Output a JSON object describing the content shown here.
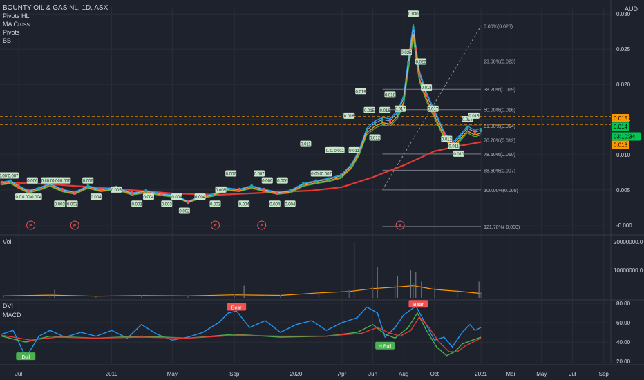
{
  "header": {
    "title": "BOUNTY OIL & GAS NL, 1D, ASX",
    "indicators": [
      "Pivots HL",
      "MA Cross",
      "Pivots",
      "BB"
    ]
  },
  "colors": {
    "background": "#1e222d",
    "grid": "#2a2e39",
    "axis_text": "#d1d4dc",
    "up": "#26a69a",
    "down": "#ef5350",
    "ma_red": "#e53935",
    "ma_orange": "#ff9800",
    "ma_blue": "#2196f3",
    "ma_green": "#4caf50",
    "dvi": "#2196f3",
    "macd": "#4caf50",
    "signal": "#e53935",
    "fib": "#787b86",
    "price_tag_green": "#00c853",
    "price_tag_orange": "#ff9800"
  },
  "price_pane": {
    "currency": "AUD",
    "yaxis_labels": [
      "0.030",
      "0.025",
      "0.020",
      "0.015",
      "0.010",
      "0.005",
      "-0.000"
    ],
    "ylim": [
      -0.001,
      0.031
    ],
    "price_tags": [
      {
        "label": "0.015",
        "value": 0.0152,
        "color": "orange"
      },
      {
        "label": "0.014",
        "value": 0.014,
        "color": "green"
      },
      {
        "label": "03:10:34",
        "value": 0.0126,
        "color": "green"
      },
      {
        "label": "0.013",
        "value": 0.0114,
        "color": "orange"
      }
    ],
    "hlines": [
      0.0154,
      0.0143
    ],
    "fib_levels": [
      {
        "label": "0.00%(0.028)",
        "value": 0.0283
      },
      {
        "label": "23.60%(0.023)",
        "value": 0.0233
      },
      {
        "label": "38.20%(0.019)",
        "value": 0.0193
      },
      {
        "label": "50.00%(0.016)",
        "value": 0.0164
      },
      {
        "label": "61.80%(0.014)",
        "value": 0.0141
      },
      {
        "label": "70.70%(0.012)",
        "value": 0.0121
      },
      {
        "label": "78.60%(0.010)",
        "value": 0.0101
      },
      {
        "label": "88.60%(0.007)",
        "value": 0.0078
      },
      {
        "label": "100.00%(0.005)",
        "value": 0.005
      },
      {
        "label": "121.70%(-0.000)",
        "value": -0.0002
      }
    ],
    "earnings_marker": "E",
    "earnings_dates": [
      "2018-07-25",
      "2018-10-20",
      "2019-07-25",
      "2019-10-25",
      "2020-07-25"
    ],
    "pivot_labels": [
      {
        "t": "2018-06-02",
        "v": "0.007",
        "y": 0.007
      },
      {
        "t": "2018-06-20",
        "v": "0.007",
        "y": 0.007
      },
      {
        "t": "2018-07-05",
        "v": "0.004",
        "y": 0.004
      },
      {
        "t": "2018-07-12",
        "v": "0.004",
        "y": 0.004
      },
      {
        "t": "2018-07-18",
        "v": "0.004",
        "y": 0.004
      },
      {
        "t": "2018-07-28",
        "v": "0.006",
        "y": 0.0063
      },
      {
        "t": "2018-08-05",
        "v": "0.004",
        "y": 0.004
      },
      {
        "t": "2018-08-25",
        "v": "0.006",
        "y": 0.0063
      },
      {
        "t": "2018-09-05",
        "v": "0.006",
        "y": 0.0063
      },
      {
        "t": "2018-09-15",
        "v": "0.006",
        "y": 0.0063
      },
      {
        "t": "2018-10-01",
        "v": "0.006",
        "y": 0.0063
      },
      {
        "t": "2018-09-20",
        "v": "0.003",
        "y": 0.003
      },
      {
        "t": "2018-10-15",
        "v": "0.003",
        "y": 0.003
      },
      {
        "t": "2018-11-15",
        "v": "0.006",
        "y": 0.0063
      },
      {
        "t": "2018-12-01",
        "v": "0.004",
        "y": 0.004
      },
      {
        "t": "2019-01-10",
        "v": "0.005",
        "y": 0.005
      },
      {
        "t": "2019-02-20",
        "v": "0.003",
        "y": 0.003
      },
      {
        "t": "2019-03-15",
        "v": "0.004",
        "y": 0.004
      },
      {
        "t": "2019-04-20",
        "v": "0.003",
        "y": 0.003
      },
      {
        "t": "2019-05-10",
        "v": "0.004",
        "y": 0.004
      },
      {
        "t": "2019-05-25",
        "v": "0.002",
        "y": 0.002
      },
      {
        "t": "2019-06-25",
        "v": "0.004",
        "y": 0.004
      },
      {
        "t": "2019-07-25",
        "v": "0.003",
        "y": 0.003
      },
      {
        "t": "2019-08-05",
        "v": "0.005",
        "y": 0.005
      },
      {
        "t": "2019-08-25",
        "v": "0.007",
        "y": 0.0073
      },
      {
        "t": "2019-09-20",
        "v": "0.004",
        "y": 0.003
      },
      {
        "t": "2019-10-20",
        "v": "0.007",
        "y": 0.0073
      },
      {
        "t": "2019-11-05",
        "v": "0.006",
        "y": 0.0063
      },
      {
        "t": "2019-11-20",
        "v": "0.004",
        "y": 0.003
      },
      {
        "t": "2019-12-05",
        "v": "0.006",
        "y": 0.0063
      },
      {
        "t": "2019-12-20",
        "v": "0.004",
        "y": 0.003
      },
      {
        "t": "2020-01-20",
        "v": "0.011",
        "y": 0.0115
      },
      {
        "t": "2020-02-10",
        "v": "0.007",
        "y": 0.0073
      },
      {
        "t": "2020-02-20",
        "v": "0.007",
        "y": 0.0073
      },
      {
        "t": "2020-03-01",
        "v": "0.007",
        "y": 0.0073
      },
      {
        "t": "2020-03-10",
        "v": "0.011",
        "y": 0.0106
      },
      {
        "t": "2020-03-18",
        "v": "0.011",
        "y": 0.0106
      },
      {
        "t": "2020-03-26",
        "v": "0.011",
        "y": 0.0106
      },
      {
        "t": "2020-04-15",
        "v": "0.016",
        "y": 0.0155
      },
      {
        "t": "2020-04-25",
        "v": "0.011",
        "y": 0.0106
      },
      {
        "t": "2020-05-08",
        "v": "0.019",
        "y": 0.019
      },
      {
        "t": "2020-05-25",
        "v": "0.015",
        "y": 0.0163
      },
      {
        "t": "2020-06-05",
        "v": "0.012",
        "y": 0.0124
      },
      {
        "t": "2020-06-25",
        "v": "0.016",
        "y": 0.0163
      },
      {
        "t": "2020-07-05",
        "v": "0.018",
        "y": 0.0185
      },
      {
        "t": "2020-07-25",
        "v": "0.017",
        "y": 0.0165
      },
      {
        "t": "2020-08-06",
        "v": "0.025",
        "y": 0.0245
      },
      {
        "t": "2020-08-20",
        "v": "0.030",
        "y": 0.03
      },
      {
        "t": "2020-09-04",
        "v": "0.022",
        "y": 0.0232
      },
      {
        "t": "2020-09-15",
        "v": "0.018",
        "y": 0.0195
      },
      {
        "t": "2020-09-28",
        "v": "0.017",
        "y": 0.0165
      },
      {
        "t": "2020-10-25",
        "v": "0.012",
        "y": 0.0122
      },
      {
        "t": "2020-11-08",
        "v": "0.011",
        "y": 0.0112
      },
      {
        "t": "2020-11-18",
        "v": "0.010",
        "y": 0.0101
      },
      {
        "t": "2020-12-05",
        "v": "0.014",
        "y": 0.015
      },
      {
        "t": "2020-12-18",
        "v": "0.015",
        "y": 0.0155
      }
    ]
  },
  "volume_pane": {
    "title": "Vol",
    "yaxis_labels": [
      "20000000.0",
      "10000000.0"
    ],
    "ylim": [
      0,
      22000000
    ]
  },
  "indicator_pane": {
    "titles": [
      "DVI",
      "MACD"
    ],
    "yaxis_labels": [
      "80.00",
      "60.00",
      "40.00",
      "20.00"
    ],
    "ylim": [
      18,
      82
    ],
    "signals": [
      {
        "label": "Bull",
        "t": "2018-07-15",
        "v": 25,
        "color": "#4caf50"
      },
      {
        "label": "Bear",
        "t": "2019-09-05",
        "v": 76,
        "color": "#ef5350"
      },
      {
        "label": "H Bull",
        "t": "2020-06-25",
        "v": 36,
        "color": "#4caf50"
      },
      {
        "label": "Bear",
        "t": "2020-08-30",
        "v": 79,
        "color": "#ef5350"
      }
    ]
  },
  "x_axis": {
    "ticks": [
      {
        "label": "Jul",
        "t": "2018-07-01"
      },
      {
        "label": "2019",
        "t": "2019-01-01"
      },
      {
        "label": "May",
        "t": "2019-05-01"
      },
      {
        "label": "Sep",
        "t": "2019-09-01"
      },
      {
        "label": "2020",
        "t": "2020-01-01"
      },
      {
        "label": "Apr",
        "t": "2020-04-01"
      },
      {
        "label": "Jun",
        "t": "2020-06-01"
      },
      {
        "label": "Aug",
        "t": "2020-08-01"
      },
      {
        "label": "Oct",
        "t": "2020-10-01"
      },
      {
        "label": "2021",
        "t": "2021-01-01"
      },
      {
        "label": "Mar",
        "t": "2021-03-01"
      },
      {
        "label": "May",
        "t": "2021-05-01"
      },
      {
        "label": "Jul",
        "t": "2021-07-01"
      },
      {
        "label": "Sep",
        "t": "2021-09-01"
      }
    ],
    "xlim": [
      "2018-05-25",
      "2021-09-15"
    ]
  },
  "chart_data": {
    "type": "line",
    "title": "BOUNTY OIL & GAS NL, 1D, ASX",
    "xlabel": "",
    "ylabel": "",
    "price_points": [
      [
        "2018-05-28",
        0.006
      ],
      [
        "2018-06-15",
        0.0062
      ],
      [
        "2018-07-01",
        0.0055
      ],
      [
        "2018-07-20",
        0.0048
      ],
      [
        "2018-08-10",
        0.0052
      ],
      [
        "2018-09-01",
        0.0058
      ],
      [
        "2018-09-25",
        0.005
      ],
      [
        "2018-10-20",
        0.0046
      ],
      [
        "2018-11-15",
        0.0055
      ],
      [
        "2018-12-10",
        0.005
      ],
      [
        "2019-01-10",
        0.0053
      ],
      [
        "2019-02-10",
        0.0045
      ],
      [
        "2019-03-10",
        0.0048
      ],
      [
        "2019-04-10",
        0.0044
      ],
      [
        "2019-05-10",
        0.0041
      ],
      [
        "2019-06-01",
        0.0033
      ],
      [
        "2019-06-25",
        0.004
      ],
      [
        "2019-07-20",
        0.0043
      ],
      [
        "2019-08-15",
        0.0052
      ],
      [
        "2019-09-10",
        0.005
      ],
      [
        "2019-10-05",
        0.0055
      ],
      [
        "2019-10-30",
        0.005
      ],
      [
        "2019-11-25",
        0.0046
      ],
      [
        "2019-12-20",
        0.0048
      ],
      [
        "2020-01-15",
        0.0058
      ],
      [
        "2020-02-10",
        0.0062
      ],
      [
        "2020-03-05",
        0.0065
      ],
      [
        "2020-03-30",
        0.007
      ],
      [
        "2020-04-20",
        0.0085
      ],
      [
        "2020-05-05",
        0.0105
      ],
      [
        "2020-05-20",
        0.0135
      ],
      [
        "2020-06-05",
        0.0145
      ],
      [
        "2020-06-20",
        0.015
      ],
      [
        "2020-07-05",
        0.0148
      ],
      [
        "2020-07-20",
        0.016
      ],
      [
        "2020-08-01",
        0.018
      ],
      [
        "2020-08-10",
        0.023
      ],
      [
        "2020-08-20",
        0.028
      ],
      [
        "2020-08-25",
        0.025
      ],
      [
        "2020-09-01",
        0.0215
      ],
      [
        "2020-09-15",
        0.0185
      ],
      [
        "2020-10-01",
        0.016
      ],
      [
        "2020-10-20",
        0.013
      ],
      [
        "2020-11-05",
        0.0115
      ],
      [
        "2020-11-20",
        0.0125
      ],
      [
        "2020-12-05",
        0.0138
      ],
      [
        "2020-12-20",
        0.0132
      ],
      [
        "2021-01-01",
        0.0135
      ]
    ],
    "ma_long_points": [
      [
        "2018-05-28",
        0.0061
      ],
      [
        "2018-09-01",
        0.0058
      ],
      [
        "2019-01-01",
        0.0052
      ],
      [
        "2019-05-01",
        0.0045
      ],
      [
        "2019-08-01",
        0.0043
      ],
      [
        "2019-11-01",
        0.0046
      ],
      [
        "2020-02-01",
        0.0049
      ],
      [
        "2020-04-01",
        0.0054
      ],
      [
        "2020-06-01",
        0.0068
      ],
      [
        "2020-08-01",
        0.0085
      ],
      [
        "2020-10-01",
        0.0105
      ],
      [
        "2020-11-15",
        0.0112
      ],
      [
        "2021-01-01",
        0.0118
      ]
    ],
    "volume_points": [
      [
        "2018-06-01",
        900000
      ],
      [
        "2018-09-01",
        1200000
      ],
      [
        "2018-12-01",
        800000
      ],
      [
        "2019-03-01",
        1000000
      ],
      [
        "2019-06-01",
        900000
      ],
      [
        "2019-09-01",
        1300000
      ],
      [
        "2019-12-01",
        1100000
      ],
      [
        "2020-02-15",
        2000000
      ],
      [
        "2020-04-15",
        2500000
      ],
      [
        "2020-06-01",
        3500000
      ],
      [
        "2020-07-15",
        4000000
      ],
      [
        "2020-08-20",
        4500000
      ],
      [
        "2020-10-01",
        3200000
      ],
      [
        "2020-11-15",
        2600000
      ],
      [
        "2021-01-01",
        1800000
      ]
    ],
    "volume_spikes": [
      [
        "2020-04-25",
        20000000
      ],
      [
        "2020-06-10",
        11000000
      ],
      [
        "2020-07-20",
        8000000
      ],
      [
        "2020-08-15",
        10000000
      ],
      [
        "2020-08-25",
        9500000
      ],
      [
        "2020-09-05",
        6000000
      ],
      [
        "2019-09-20",
        4500000
      ],
      [
        "2018-09-10",
        3000000
      ],
      [
        "2020-12-28",
        6000000
      ]
    ],
    "dvi_points": [
      [
        "2018-05-28",
        48
      ],
      [
        "2018-06-20",
        52
      ],
      [
        "2018-07-10",
        30
      ],
      [
        "2018-07-20",
        28
      ],
      [
        "2018-08-10",
        46
      ],
      [
        "2018-09-01",
        52
      ],
      [
        "2018-10-01",
        45
      ],
      [
        "2018-11-01",
        50
      ],
      [
        "2018-12-01",
        46
      ],
      [
        "2019-01-01",
        52
      ],
      [
        "2019-02-01",
        44
      ],
      [
        "2019-03-01",
        58
      ],
      [
        "2019-04-01",
        48
      ],
      [
        "2019-05-01",
        42
      ],
      [
        "2019-06-01",
        45
      ],
      [
        "2019-07-01",
        50
      ],
      [
        "2019-08-01",
        60
      ],
      [
        "2019-08-20",
        70
      ],
      [
        "2019-09-05",
        72
      ],
      [
        "2019-10-01",
        55
      ],
      [
        "2019-11-01",
        62
      ],
      [
        "2019-12-01",
        50
      ],
      [
        "2020-01-01",
        58
      ],
      [
        "2020-02-01",
        62
      ],
      [
        "2020-03-01",
        52
      ],
      [
        "2020-04-01",
        60
      ],
      [
        "2020-05-01",
        65
      ],
      [
        "2020-05-20",
        76
      ],
      [
        "2020-06-10",
        70
      ],
      [
        "2020-06-25",
        45
      ],
      [
        "2020-07-15",
        55
      ],
      [
        "2020-08-01",
        68
      ],
      [
        "2020-08-25",
        77
      ],
      [
        "2020-09-10",
        62
      ],
      [
        "2020-10-01",
        42
      ],
      [
        "2020-10-20",
        45
      ],
      [
        "2020-11-05",
        35
      ],
      [
        "2020-11-25",
        50
      ],
      [
        "2020-12-10",
        58
      ],
      [
        "2020-12-20",
        52
      ],
      [
        "2021-01-01",
        55
      ]
    ],
    "macd_points": [
      [
        "2018-05-28",
        46
      ],
      [
        "2018-07-15",
        40
      ],
      [
        "2018-09-01",
        46
      ],
      [
        "2018-12-01",
        44
      ],
      [
        "2019-03-01",
        46
      ],
      [
        "2019-06-01",
        44
      ],
      [
        "2019-09-01",
        48
      ],
      [
        "2019-12-01",
        45
      ],
      [
        "2020-03-01",
        46
      ],
      [
        "2020-05-01",
        50
      ],
      [
        "2020-06-01",
        58
      ],
      [
        "2020-06-25",
        48
      ],
      [
        "2020-07-15",
        44
      ],
      [
        "2020-08-10",
        55
      ],
      [
        "2020-08-28",
        70
      ],
      [
        "2020-09-15",
        52
      ],
      [
        "2020-10-05",
        35
      ],
      [
        "2020-10-25",
        26
      ],
      [
        "2020-11-10",
        30
      ],
      [
        "2020-11-25",
        38
      ],
      [
        "2020-12-15",
        42
      ],
      [
        "2021-01-01",
        45
      ]
    ],
    "signal_points": [
      [
        "2018-05-28",
        47
      ],
      [
        "2018-07-25",
        42
      ],
      [
        "2018-09-15",
        45
      ],
      [
        "2018-12-01",
        44
      ],
      [
        "2019-03-01",
        45
      ],
      [
        "2019-06-01",
        44
      ],
      [
        "2019-09-10",
        47
      ],
      [
        "2019-12-01",
        46
      ],
      [
        "2020-03-01",
        46
      ],
      [
        "2020-05-10",
        49
      ],
      [
        "2020-06-10",
        55
      ],
      [
        "2020-07-01",
        50
      ],
      [
        "2020-07-25",
        46
      ],
      [
        "2020-08-15",
        52
      ],
      [
        "2020-09-01",
        66
      ],
      [
        "2020-09-20",
        55
      ],
      [
        "2020-10-10",
        40
      ],
      [
        "2020-10-30",
        30
      ],
      [
        "2020-11-15",
        30
      ],
      [
        "2020-12-01",
        36
      ],
      [
        "2020-12-20",
        41
      ],
      [
        "2021-01-01",
        44
      ]
    ]
  }
}
